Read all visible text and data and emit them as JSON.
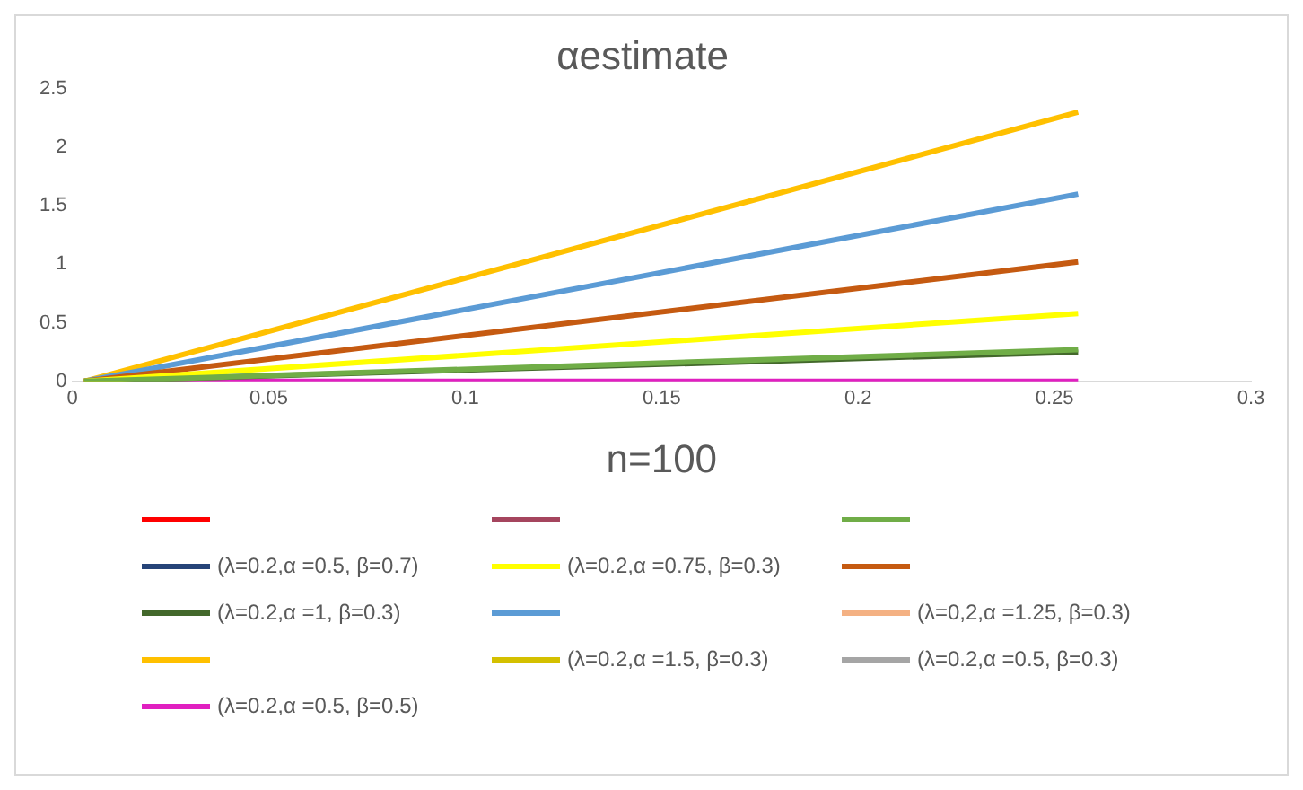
{
  "chart_data": {
    "type": "line",
    "title": "αestimate",
    "xlabel": "n=100",
    "x": [
      0.003,
      0.256
    ],
    "xlim": [
      0,
      0.3
    ],
    "xticks": [
      0,
      0.05,
      0.1,
      0.15,
      0.2,
      0.25,
      0.3
    ],
    "ylim": [
      0,
      2.5
    ],
    "yticks": [
      0,
      0.5,
      1,
      1.5,
      2,
      2.5
    ],
    "grid": false,
    "legend": "bottom",
    "marker": "none",
    "line_style": "solid",
    "series": [
      {
        "color": "#ff0000",
        "values": [
          null,
          null
        ]
      },
      {
        "color": "#a5455e",
        "values": [
          null,
          null
        ]
      },
      {
        "color": "#70ad47",
        "values": [
          0,
          0.27
        ]
      },
      {
        "name": "(λ=0.2,α =0.5, β=0.7)",
        "color": "#264478",
        "values": [
          null,
          null
        ]
      },
      {
        "name": "(λ=0.2,α =0.75, β=0.3)",
        "color": "#ffff00",
        "values": [
          0,
          0.58
        ]
      },
      {
        "color": "#c55a11",
        "values": [
          0,
          1.02
        ]
      },
      {
        "name": "(λ=0.2,α =1, β=0.3)",
        "color": "#43682b",
        "values": [
          0,
          0.25
        ]
      },
      {
        "color": "#5b9bd5",
        "values": [
          0,
          1.6
        ]
      },
      {
        "name": "(λ=0,2,α =1.25, β=0.3)",
        "color": "#f4b183",
        "values": [
          null,
          null
        ]
      },
      {
        "color": "#ffc000",
        "values": [
          0,
          2.3
        ]
      },
      {
        "name": "(λ=0.2,α =1.5, β=0.3)",
        "color": "#d4c000",
        "values": [
          null,
          null
        ]
      },
      {
        "name": "(λ=0.2,α =0.5, β=0.3)",
        "color": "#a5a5a5",
        "values": [
          null,
          null
        ]
      },
      {
        "name": "(λ=0.2,α =0.5, β=0.5)",
        "color": "#e020c0",
        "values": [
          0,
          0
        ]
      }
    ]
  }
}
